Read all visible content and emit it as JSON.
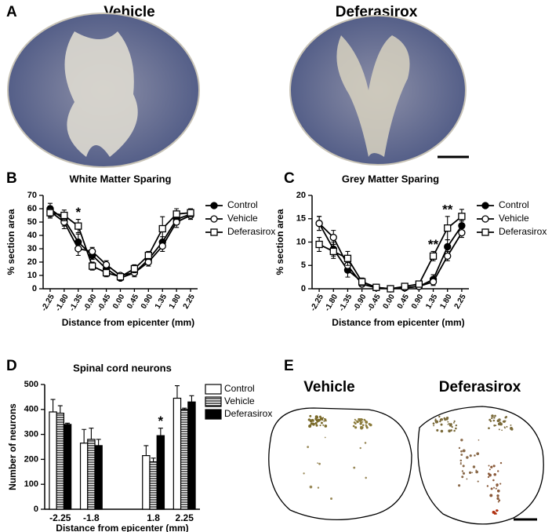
{
  "panel_labels": [
    "A",
    "B",
    "C",
    "D",
    "E"
  ],
  "panel_a": {
    "labels": [
      "Vehicle",
      "Deferasirox"
    ]
  },
  "panel_e": {
    "labels": [
      "Vehicle",
      "Deferasirox"
    ]
  },
  "chart_data": [
    {
      "type": "line",
      "title": "White Matter Sparing",
      "y_label": "% section area",
      "x_label": "Distance from epicenter (mm)",
      "categories": [
        "-2.25",
        "-1.80",
        "-1.35",
        "-0.90",
        "-0.45",
        "0.00",
        "0.45",
        "0.90",
        "1.35",
        "1.80",
        "2.25"
      ],
      "ylim": [
        0,
        70
      ],
      "yticks": [
        0,
        10,
        20,
        30,
        40,
        50,
        60,
        70
      ],
      "legend": "right",
      "series": [
        {
          "name": "Control",
          "color": "#000000",
          "marker": "filled-circle",
          "values": [
            60,
            52,
            35,
            25,
            15,
            8,
            12,
            22,
            35,
            52,
            56
          ],
          "errors": [
            4,
            5,
            6,
            3,
            3,
            1,
            3,
            3,
            4,
            4,
            3
          ]
        },
        {
          "name": "Vehicle",
          "color": "#000000",
          "marker": "open-circle",
          "values": [
            58,
            50,
            30,
            28,
            18,
            10,
            12,
            20,
            32,
            50,
            55
          ],
          "errors": [
            4,
            5,
            5,
            3,
            3,
            1,
            2,
            3,
            4,
            4,
            3
          ]
        },
        {
          "name": "Deferasirox",
          "color": "#000000",
          "marker": "open-square",
          "values": [
            57,
            55,
            47,
            17,
            12,
            9,
            15,
            25,
            45,
            56,
            57
          ],
          "errors": [
            4,
            4,
            5,
            3,
            3,
            1,
            3,
            3,
            9,
            4,
            3
          ]
        }
      ],
      "annotations": [
        {
          "text": "*",
          "category": "-1.35"
        }
      ]
    },
    {
      "type": "line",
      "title": "Grey Matter Sparing",
      "y_label": "% section area",
      "x_label": "Distance from epicenter (mm)",
      "categories": [
        "-2.25",
        "-1.80",
        "-1.35",
        "-0.90",
        "-0.45",
        "0.00",
        "0.45",
        "0.90",
        "1.35",
        "1.80",
        "2.25"
      ],
      "ylim": [
        0,
        20
      ],
      "yticks": [
        0,
        5,
        10,
        15,
        20
      ],
      "legend": "right",
      "series": [
        {
          "name": "Control",
          "color": "#000000",
          "marker": "filled-circle",
          "values": [
            14,
            8.5,
            4,
            1.5,
            0.3,
            0,
            0.2,
            0.5,
            2,
            9,
            13.5
          ],
          "errors": [
            1.5,
            1.5,
            1.5,
            0.5,
            0.2,
            0,
            0.2,
            0.3,
            1,
            1.5,
            1
          ]
        },
        {
          "name": "Vehicle",
          "color": "#000000",
          "marker": "open-circle",
          "values": [
            14,
            11,
            5,
            1,
            0.2,
            0,
            0.2,
            0.5,
            1.5,
            7,
            12
          ],
          "errors": [
            1.5,
            1.5,
            1.5,
            0.5,
            0.2,
            0,
            0.2,
            0.3,
            0.8,
            1,
            1
          ]
        },
        {
          "name": "Deferasirox",
          "color": "#000000",
          "marker": "open-square",
          "values": [
            9.5,
            8,
            6.5,
            1.5,
            0.3,
            0,
            0.5,
            1,
            7,
            13,
            15.5
          ],
          "errors": [
            1.5,
            1.5,
            1.5,
            0.8,
            0.2,
            0,
            0.3,
            0.5,
            1,
            2.5,
            1.5
          ]
        }
      ],
      "annotations": [
        {
          "text": "**",
          "category": "1.35"
        },
        {
          "text": "**",
          "category": "1.80"
        }
      ]
    },
    {
      "type": "bar",
      "title": "Spinal cord neurons",
      "y_label": "Number of neurons",
      "x_label": "Distance from epicenter (mm)",
      "categories": [
        "-2.25",
        "-1.8",
        null,
        "1.8",
        "2.25"
      ],
      "ylim": [
        0,
        500
      ],
      "yticks": [
        0,
        100,
        200,
        300,
        400,
        500
      ],
      "legend": "right",
      "series": [
        {
          "name": "Control",
          "color": "#ffffff",
          "pattern": "solid",
          "values": [
            390,
            265,
            null,
            215,
            445
          ],
          "errors": [
            50,
            55,
            null,
            40,
            50
          ]
        },
        {
          "name": "Vehicle",
          "color": "#000000",
          "pattern": "hatch",
          "values": [
            385,
            280,
            null,
            190,
            400
          ],
          "errors": [
            30,
            45,
            null,
            15,
            5
          ]
        },
        {
          "name": "Deferasirox",
          "color": "#000000",
          "pattern": "solid",
          "values": [
            340,
            255,
            null,
            295,
            430
          ],
          "errors": [
            5,
            25,
            null,
            30,
            25
          ]
        }
      ],
      "annotations": [
        {
          "text": "*",
          "category": "1.8",
          "series": "Deferasirox"
        }
      ]
    }
  ]
}
